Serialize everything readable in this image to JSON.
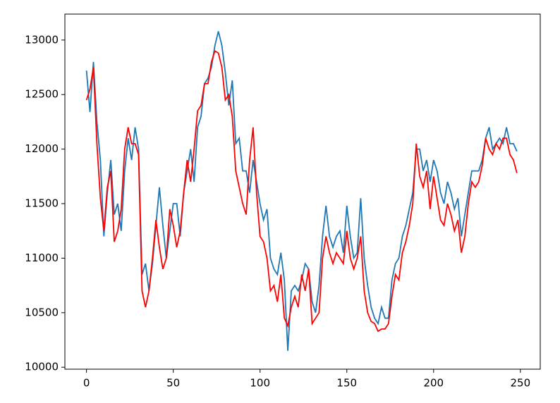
{
  "chart_data": {
    "type": "line",
    "x": [
      0,
      2,
      4,
      6,
      8,
      10,
      12,
      14,
      16,
      18,
      20,
      22,
      24,
      26,
      28,
      30,
      32,
      34,
      36,
      38,
      40,
      42,
      44,
      46,
      48,
      50,
      52,
      54,
      56,
      58,
      60,
      62,
      64,
      66,
      68,
      70,
      72,
      74,
      76,
      78,
      80,
      82,
      84,
      86,
      88,
      90,
      92,
      94,
      96,
      98,
      100,
      102,
      104,
      106,
      108,
      110,
      112,
      114,
      116,
      118,
      120,
      122,
      124,
      126,
      128,
      130,
      132,
      134,
      136,
      138,
      140,
      142,
      144,
      146,
      148,
      150,
      152,
      154,
      156,
      158,
      160,
      162,
      164,
      166,
      168,
      170,
      172,
      174,
      176,
      178,
      180,
      182,
      184,
      186,
      188,
      190,
      192,
      194,
      196,
      198,
      200,
      202,
      204,
      206,
      208,
      210,
      212,
      214,
      216,
      218,
      220,
      222,
      224,
      226,
      228,
      230,
      232,
      234,
      236,
      238,
      240,
      242,
      244,
      246,
      248
    ],
    "series": [
      {
        "color": "#1f77b4",
        "values": [
          12720,
          12340,
          12800,
          12250,
          11900,
          11200,
          11600,
          11900,
          11400,
          11500,
          11250,
          11800,
          12100,
          11900,
          12200,
          12000,
          10850,
          10950,
          10700,
          10950,
          11300,
          11650,
          11300,
          11000,
          11250,
          11500,
          11500,
          11200,
          11600,
          11800,
          12000,
          11700,
          12200,
          12300,
          12600,
          12650,
          12750,
          12950,
          13080,
          12950,
          12700,
          12400,
          12630,
          12050,
          12100,
          11800,
          11800,
          11600,
          11900,
          11700,
          11500,
          11350,
          11450,
          11000,
          10900,
          10850,
          11050,
          10800,
          10150,
          10700,
          10750,
          10700,
          10800,
          10950,
          10900,
          10600,
          10500,
          10750,
          11200,
          11480,
          11200,
          11100,
          11200,
          11250,
          11050,
          11480,
          11200,
          11000,
          11050,
          11550,
          11000,
          10750,
          10550,
          10450,
          10400,
          10550,
          10450,
          10450,
          10800,
          10950,
          11000,
          11200,
          11300,
          11450,
          11600,
          12000,
          12000,
          11800,
          11900,
          11700,
          11900,
          11800,
          11600,
          11500,
          11700,
          11600,
          11450,
          11550,
          11200,
          11400,
          11600,
          11800,
          11800,
          11800,
          11900,
          12100,
          12200,
          12000,
          12050,
          12100,
          12050,
          12200,
          12050,
          12050,
          11980
        ]
      },
      {
        "color": "#ff0000",
        "values": [
          12450,
          12550,
          12750,
          12050,
          11550,
          11250,
          11650,
          11800,
          11150,
          11250,
          11450,
          12000,
          12200,
          12050,
          12050,
          11950,
          10700,
          10550,
          10700,
          11000,
          11350,
          11100,
          10900,
          11000,
          11450,
          11300,
          11100,
          11250,
          11600,
          11900,
          11700,
          12000,
          12350,
          12400,
          12600,
          12600,
          12800,
          12900,
          12880,
          12750,
          12450,
          12500,
          12300,
          11800,
          11650,
          11500,
          11400,
          11900,
          12200,
          11600,
          11200,
          11150,
          11000,
          10700,
          10750,
          10600,
          10850,
          10450,
          10380,
          10550,
          10650,
          10550,
          10850,
          10700,
          10900,
          10400,
          10450,
          10500,
          11000,
          11200,
          11050,
          10950,
          11050,
          11000,
          10950,
          11250,
          11000,
          10900,
          11000,
          11200,
          10700,
          10500,
          10420,
          10400,
          10330,
          10350,
          10350,
          10400,
          10650,
          10850,
          10800,
          11050,
          11150,
          11300,
          11500,
          12050,
          11750,
          11650,
          11800,
          11450,
          11750,
          11550,
          11350,
          11300,
          11500,
          11400,
          11250,
          11350,
          11050,
          11200,
          11500,
          11700,
          11650,
          11700,
          11850,
          12100,
          12000,
          11950,
          12050,
          12000,
          12100,
          12100,
          11950,
          11900,
          11780
        ]
      }
    ],
    "xlim": [
      -12.45,
      261.45
    ],
    "ylim": [
      9982,
      13238
    ],
    "xticks": [
      0,
      50,
      100,
      150,
      200,
      250
    ],
    "yticks": [
      10000,
      10500,
      11000,
      11500,
      12000,
      12500,
      13000
    ]
  }
}
